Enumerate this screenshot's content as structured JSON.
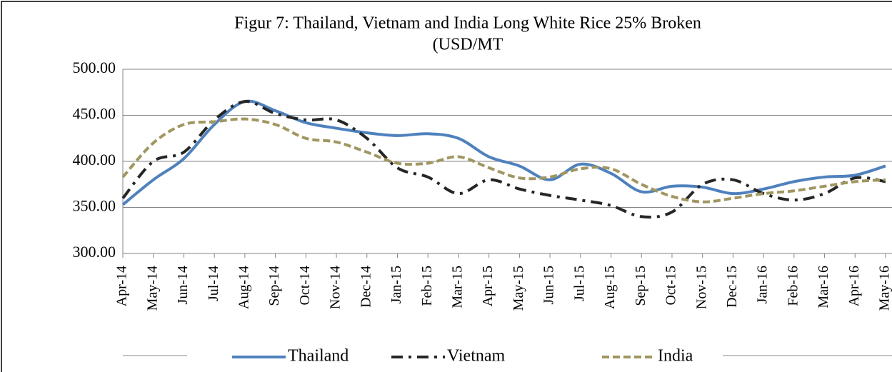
{
  "chart_data": {
    "type": "line",
    "title": [
      "Figur 7: Thailand, Vietnam and India Long White Rice 25% Broken",
      "(USD/MT"
    ],
    "categories": [
      "Apr-14",
      "May-14",
      "Jun-14",
      "Jul-14",
      "Aug-14",
      "Sep-14",
      "Oct-14",
      "Nov-14",
      "Dec-14",
      "Jan-15",
      "Feb-15",
      "Mar-15",
      "Apr-15",
      "May-15",
      "Jun-15",
      "Jul-15",
      "Aug-15",
      "Sep-15",
      "Oct-15",
      "Nov-15",
      "Dec-15",
      "Jan-16",
      "Feb-16",
      "Mar-16",
      "Apr-16",
      "May-16"
    ],
    "series": [
      {
        "name": "Thailand",
        "color": "#4f81bd",
        "style": "solid",
        "values": [
          353,
          380,
          403,
          440,
          465,
          455,
          442,
          436,
          431,
          428,
          430,
          425,
          405,
          395,
          380,
          397,
          387,
          367,
          373,
          372,
          365,
          370,
          378,
          383,
          385,
          395
        ]
      },
      {
        "name": "Vietnam",
        "color": "#262626",
        "style": "dashdot",
        "values": [
          360,
          400,
          410,
          445,
          465,
          452,
          445,
          445,
          425,
          393,
          383,
          365,
          380,
          370,
          363,
          358,
          352,
          340,
          345,
          375,
          380,
          365,
          358,
          365,
          382,
          378
        ]
      },
      {
        "name": "India",
        "color": "#a09660",
        "style": "dashed",
        "values": [
          383,
          420,
          440,
          443,
          446,
          440,
          425,
          421,
          410,
          398,
          398,
          405,
          393,
          382,
          383,
          392,
          392,
          375,
          362,
          356,
          360,
          365,
          368,
          373,
          378,
          380
        ]
      }
    ],
    "ylim": [
      300,
      500
    ],
    "yticks": [
      {
        "value": 300,
        "label": "300.00"
      },
      {
        "value": 350,
        "label": "350.00"
      },
      {
        "value": 400,
        "label": "400.00"
      },
      {
        "value": 450,
        "label": "450.00"
      },
      {
        "value": 500,
        "label": "500.00"
      }
    ],
    "grid": true,
    "legend": "bottom"
  }
}
